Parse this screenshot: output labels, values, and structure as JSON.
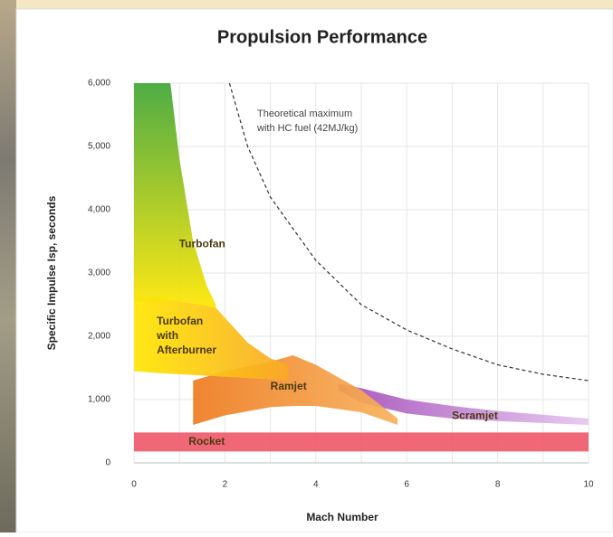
{
  "chart_data": {
    "type": "region",
    "title": "Propulsion Performance",
    "x_label": "Mach Number",
    "y_label": "Specific Impulse Isp, seconds",
    "xlim": [
      0,
      10
    ],
    "ylim": [
      0,
      6000
    ],
    "xticks": [
      0,
      2,
      4,
      6,
      8,
      10
    ],
    "yticks": [
      0,
      {
        "value": 1000,
        "label": "1,000"
      },
      {
        "value": 2000,
        "label": "2,000"
      },
      {
        "value": 3000,
        "label": "3,000"
      },
      {
        "value": 4000,
        "label": "4,000"
      },
      {
        "value": 5000,
        "label": "5,000"
      },
      {
        "value": 6000,
        "label": "6,000"
      }
    ],
    "grid": true,
    "series": [
      {
        "name": "Rocket",
        "color": "#ef5a6b",
        "x": [
          0,
          10
        ],
        "upper": [
          480,
          480
        ],
        "lower": [
          180,
          180
        ]
      },
      {
        "name": "Scramjet",
        "color": "#a24bb8",
        "color2": "#e5c6ee",
        "x": [
          4.5,
          5,
          6,
          7,
          8,
          9,
          10
        ],
        "upper": [
          1250,
          1180,
          1000,
          900,
          820,
          760,
          700
        ],
        "lower": [
          1150,
          950,
          780,
          700,
          660,
          630,
          600
        ]
      },
      {
        "name": "Ramjet",
        "color": "#ee7a1f",
        "color2": "#f7b15a",
        "x": [
          1.3,
          2,
          3,
          3.5,
          4,
          5,
          5.8
        ],
        "upper": [
          1300,
          1450,
          1600,
          1700,
          1550,
          1150,
          700
        ],
        "lower": [
          600,
          750,
          880,
          900,
          900,
          800,
          600
        ]
      },
      {
        "name": "Turbofan with Afterburner",
        "color": "#ffe600",
        "color2": "#f9a825",
        "x": [
          0,
          0.5,
          1,
          1.5,
          1.8,
          2.5,
          3,
          3.4
        ],
        "upper": [
          2600,
          2600,
          2550,
          2500,
          2450,
          1900,
          1650,
          1550
        ],
        "lower": [
          1450,
          1420,
          1400,
          1380,
          1370,
          1340,
          1320,
          1300
        ]
      },
      {
        "name": "Turbofan",
        "color": "#3fa535",
        "color2": "#ffe600",
        "x": [
          0,
          0.8,
          1,
          1.3,
          1.6,
          1.8
        ],
        "upper": [
          6000,
          6000,
          4800,
          3500,
          2800,
          2500
        ],
        "lower": [
          2550,
          2550,
          2550,
          2520,
          2480,
          2450
        ]
      }
    ],
    "theoretical_max": {
      "color": "#333333",
      "x": [
        2.1,
        2.5,
        3,
        4,
        5,
        6,
        7,
        8,
        9,
        10
      ],
      "values": [
        6000,
        5000,
        4200,
        3200,
        2500,
        2100,
        1800,
        1550,
        1400,
        1300
      ]
    },
    "annotation_lines": [
      "Theoretical maximum",
      "with HC fuel (42MJ/kg)"
    ]
  }
}
